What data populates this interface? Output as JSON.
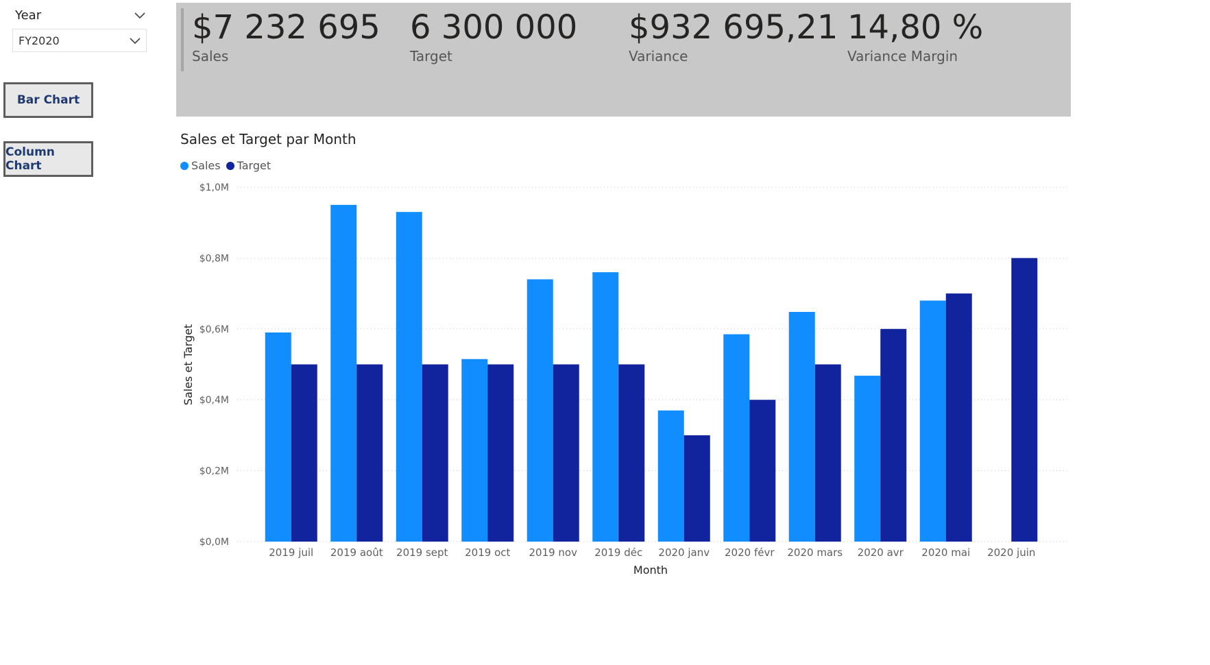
{
  "slicer": {
    "title": "Year",
    "selected": "FY2020",
    "header_icon": "chevron-down-icon",
    "dropdown_icon": "chevron-down-icon"
  },
  "buttons": {
    "bar_chart": "Bar Chart",
    "column_chart": "Column Chart"
  },
  "kpis": [
    {
      "value": "$7 232 695",
      "label": "Sales"
    },
    {
      "value": "6 300 000",
      "label": "Target"
    },
    {
      "value": "$932 695,21",
      "label": "Variance"
    },
    {
      "value": "14,80 %",
      "label": "Variance Margin"
    }
  ],
  "colors": {
    "sales": "#118DFF",
    "target": "#12239E",
    "kpi_band": "#C8C8C8",
    "button_text": "#1E3A70"
  },
  "chart_data": {
    "type": "bar",
    "title": "Sales et Target par Month",
    "xlabel": "Month",
    "ylabel": "Sales et Target",
    "categories": [
      "2019 juil",
      "2019 août",
      "2019 sept",
      "2019 oct",
      "2019 nov",
      "2019 déc",
      "2020 janv",
      "2020 févr",
      "2020 mars",
      "2020 avr",
      "2020 mai",
      "2020 juin"
    ],
    "series": [
      {
        "name": "Sales",
        "values": [
          0.59,
          0.95,
          0.93,
          0.515,
          0.74,
          0.76,
          0.37,
          0.585,
          0.648,
          0.468,
          0.68,
          null
        ]
      },
      {
        "name": "Target",
        "values": [
          0.5,
          0.5,
          0.5,
          0.5,
          0.5,
          0.5,
          0.3,
          0.4,
          0.5,
          0.6,
          0.7,
          0.8
        ]
      }
    ],
    "ylim": [
      0,
      1.0
    ],
    "yticks": [
      0,
      0.2,
      0.4,
      0.6,
      0.8,
      1.0
    ],
    "ytick_labels": [
      "$0,0M",
      "$0,2M",
      "$0,4M",
      "$0,6M",
      "$0,8M",
      "$1,0M"
    ],
    "grid": true,
    "legend_position": "top-left"
  }
}
